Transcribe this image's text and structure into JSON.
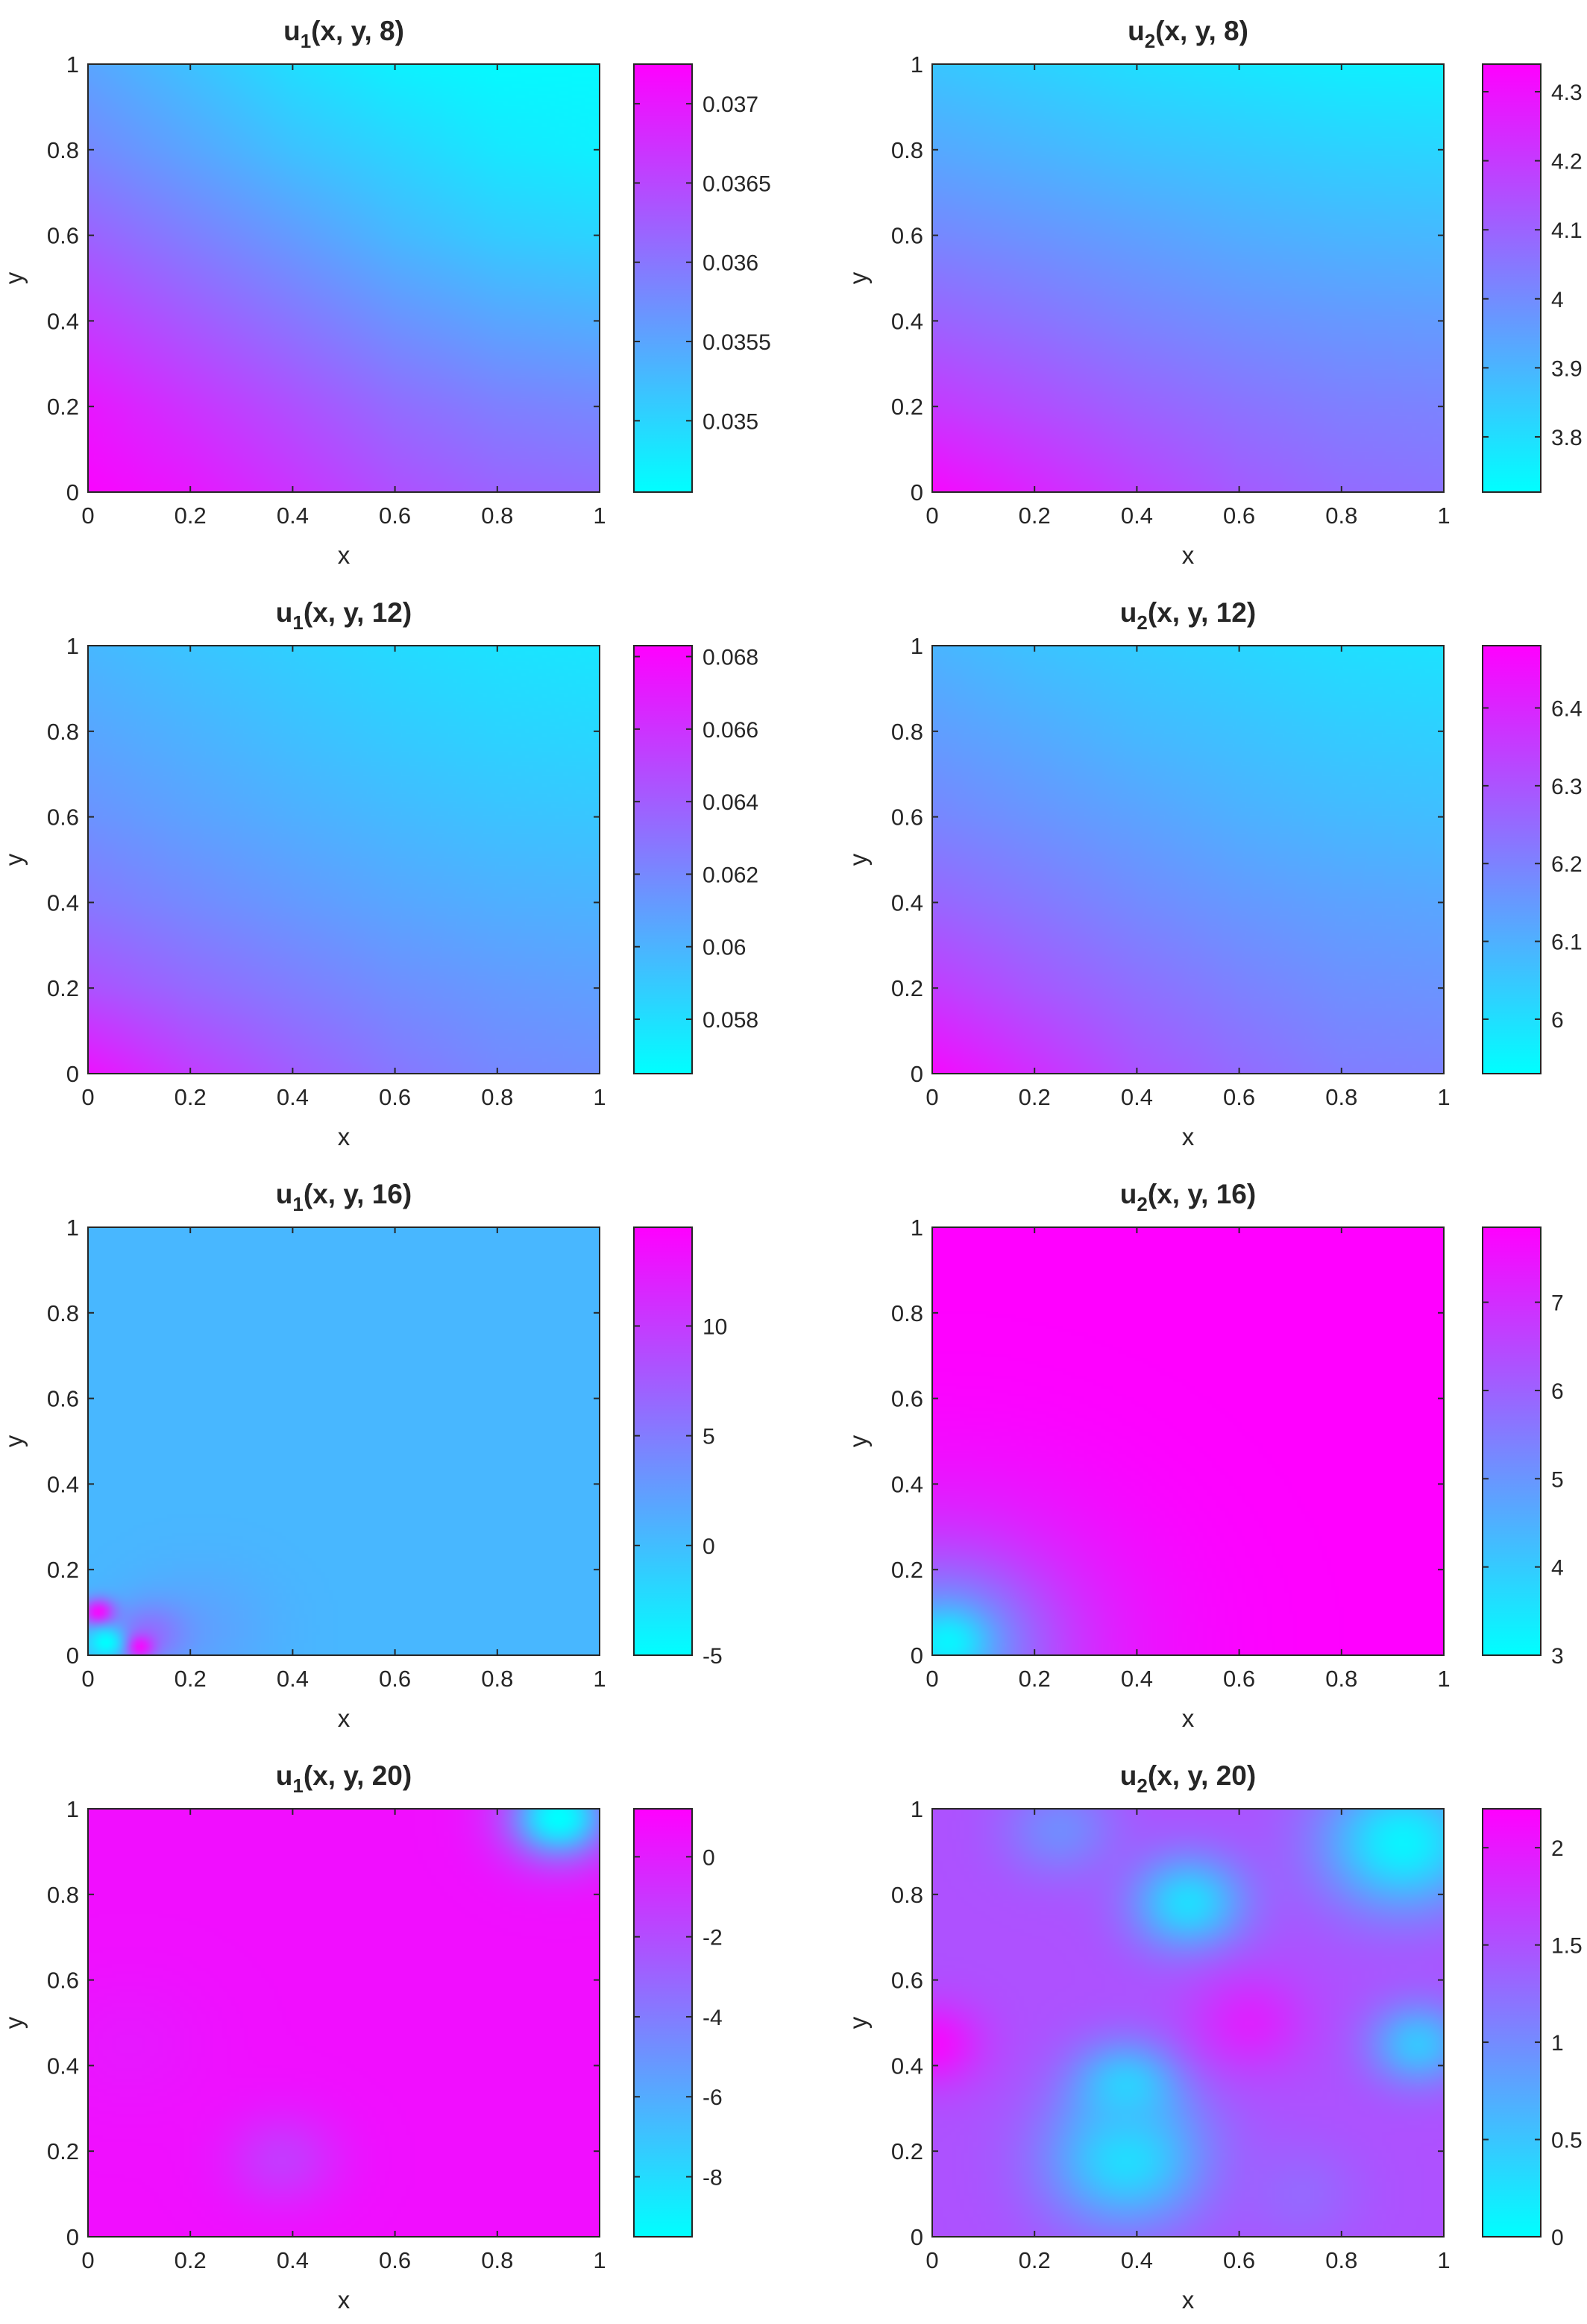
{
  "colors": {
    "low": "#00ffff",
    "high": "#ff00ff",
    "axis": "#262626"
  },
  "colormap": "cool",
  "chart_data": [
    {
      "type": "heatmap",
      "title": "u1(x, y, 8)",
      "title_main": "u",
      "title_sub": "1",
      "title_rest": "(x, y, 8)",
      "xlabel": "x",
      "ylabel": "y",
      "xlim": [
        0,
        1
      ],
      "ylim": [
        0,
        1
      ],
      "xticks": [
        "0",
        "0.2",
        "0.4",
        "0.6",
        "0.8",
        "1"
      ],
      "yticks": [
        "0",
        "0.2",
        "0.4",
        "0.6",
        "0.8",
        "1"
      ],
      "colorbar": {
        "range": [
          0.03455,
          0.03725
        ],
        "ticks": [
          0.035,
          0.0355,
          0.036,
          0.0365,
          0.037
        ],
        "tick_labels": [
          "0.035",
          "0.0355",
          "0.036",
          "0.0365",
          "0.037"
        ]
      },
      "z_rows_top_to_bottom": [
        [
          0.0355,
          0.0352,
          0.0349,
          0.0347,
          0.0346,
          0.0346
        ],
        [
          0.0358,
          0.0355,
          0.0352,
          0.035,
          0.0348,
          0.0347
        ],
        [
          0.0362,
          0.0359,
          0.0356,
          0.0353,
          0.0351,
          0.035
        ],
        [
          0.0366,
          0.0363,
          0.036,
          0.0357,
          0.0355,
          0.0354
        ],
        [
          0.037,
          0.0367,
          0.0364,
          0.0361,
          0.0359,
          0.0358
        ],
        [
          0.0372,
          0.037,
          0.0367,
          0.0364,
          0.0362,
          0.0361
        ]
      ]
    },
    {
      "type": "heatmap",
      "title": "u2(x, y, 8)",
      "title_main": "u",
      "title_sub": "2",
      "title_rest": "(x, y, 8)",
      "xlabel": "x",
      "ylabel": "y",
      "xlim": [
        0,
        1
      ],
      "ylim": [
        0,
        1
      ],
      "xticks": [
        "0",
        "0.2",
        "0.4",
        "0.6",
        "0.8",
        "1"
      ],
      "yticks": [
        "0",
        "0.2",
        "0.4",
        "0.6",
        "0.8",
        "1"
      ],
      "colorbar": {
        "range": [
          3.72,
          4.34
        ],
        "ticks": [
          3.8,
          3.9,
          4,
          4.1,
          4.2,
          4.3
        ],
        "tick_labels": [
          "3.8",
          "3.9",
          "4",
          "4.1",
          "4.2",
          "4.3"
        ]
      },
      "z_rows_top_to_bottom": [
        [
          3.86,
          3.83,
          3.8,
          3.78,
          3.76,
          3.75
        ],
        [
          3.93,
          3.9,
          3.87,
          3.85,
          3.83,
          3.82
        ],
        [
          4.01,
          3.98,
          3.95,
          3.92,
          3.9,
          3.89
        ],
        [
          4.1,
          4.06,
          4.02,
          3.99,
          3.97,
          3.96
        ],
        [
          4.2,
          4.15,
          4.1,
          4.06,
          4.03,
          4.02
        ],
        [
          4.32,
          4.25,
          4.18,
          4.12,
          4.08,
          4.06
        ]
      ]
    },
    {
      "type": "heatmap",
      "title": "u1(x, y, 12)",
      "title_main": "u",
      "title_sub": "1",
      "title_rest": "(x, y, 12)",
      "xlabel": "x",
      "ylabel": "y",
      "xlim": [
        0,
        1
      ],
      "ylim": [
        0,
        1
      ],
      "xticks": [
        "0",
        "0.2",
        "0.4",
        "0.6",
        "0.8",
        "1"
      ],
      "yticks": [
        "0",
        "0.2",
        "0.4",
        "0.6",
        "0.8",
        "1"
      ],
      "colorbar": {
        "range": [
          0.0565,
          0.0683
        ],
        "ticks": [
          0.058,
          0.06,
          0.062,
          0.064,
          0.066,
          0.068
        ],
        "tick_labels": [
          "0.058",
          "0.06",
          "0.062",
          "0.064",
          "0.066",
          "0.068"
        ]
      },
      "z_rows_top_to_bottom": [
        [
          0.0598,
          0.0592,
          0.0587,
          0.0582,
          0.0578,
          0.0576
        ],
        [
          0.0606,
          0.06,
          0.0594,
          0.0589,
          0.0585,
          0.0583
        ],
        [
          0.0615,
          0.0608,
          0.0602,
          0.0597,
          0.0593,
          0.0591
        ],
        [
          0.0627,
          0.0619,
          0.0612,
          0.0606,
          0.0602,
          0.06
        ],
        [
          0.0645,
          0.0634,
          0.0625,
          0.0617,
          0.0612,
          0.0609
        ],
        [
          0.0675,
          0.0655,
          0.064,
          0.0628,
          0.062,
          0.0617
        ]
      ]
    },
    {
      "type": "heatmap",
      "title": "u2(x, y, 12)",
      "title_main": "u",
      "title_sub": "2",
      "title_rest": "(x, y, 12)",
      "xlabel": "x",
      "ylabel": "y",
      "xlim": [
        0,
        1
      ],
      "ylim": [
        0,
        1
      ],
      "xticks": [
        "0",
        "0.2",
        "0.4",
        "0.6",
        "0.8",
        "1"
      ],
      "yticks": [
        "0",
        "0.2",
        "0.4",
        "0.6",
        "0.8",
        "1"
      ],
      "colorbar": {
        "range": [
          5.93,
          6.48
        ],
        "ticks": [
          6,
          6.1,
          6.2,
          6.3,
          6.4
        ],
        "tick_labels": [
          "6",
          "6.1",
          "6.2",
          "6.3",
          "6.4"
        ]
      },
      "z_rows_top_to_bottom": [
        [
          6.09,
          6.06,
          6.04,
          6.02,
          6.0,
          5.99
        ],
        [
          6.14,
          6.11,
          6.08,
          6.06,
          6.04,
          6.03
        ],
        [
          6.19,
          6.16,
          6.13,
          6.1,
          6.08,
          6.07
        ],
        [
          6.26,
          6.22,
          6.18,
          6.15,
          6.13,
          6.12
        ],
        [
          6.35,
          6.29,
          6.24,
          6.2,
          6.17,
          6.16
        ],
        [
          6.46,
          6.38,
          6.3,
          6.25,
          6.21,
          6.2
        ]
      ]
    },
    {
      "type": "heatmap",
      "title": "u1(x, y, 16)",
      "title_main": "u",
      "title_sub": "1",
      "title_rest": "(x, y, 16)",
      "xlabel": "x",
      "ylabel": "y",
      "xlim": [
        0,
        1
      ],
      "ylim": [
        0,
        1
      ],
      "xticks": [
        "0",
        "0.2",
        "0.4",
        "0.6",
        "0.8",
        "1"
      ],
      "yticks": [
        "0",
        "0.2",
        "0.4",
        "0.6",
        "0.8",
        "1"
      ],
      "colorbar": {
        "range": [
          -5,
          14.5
        ],
        "ticks": [
          -5,
          0,
          5,
          10
        ],
        "tick_labels": [
          "-5",
          "0",
          "5",
          "10"
        ]
      },
      "background_value": 0.5,
      "blobs": [
        {
          "x": 0.22,
          "y": 0.06,
          "r": 0.18,
          "value": 2.0
        },
        {
          "x": 0.12,
          "y": 0.05,
          "r": 0.09,
          "value": 6.0
        },
        {
          "x": 0.02,
          "y": 0.1,
          "r": 0.04,
          "value": 14.0
        },
        {
          "x": 0.1,
          "y": 0.02,
          "r": 0.035,
          "value": 14.0
        },
        {
          "x": 0.035,
          "y": 0.03,
          "r": 0.045,
          "value": -5.0
        }
      ]
    },
    {
      "type": "heatmap",
      "title": "u2(x,  y, 16)",
      "title_main": "u",
      "title_sub": "2",
      "title_rest": "(x,  y, 16)",
      "xlabel": "x",
      "ylabel": "y",
      "xlim": [
        0,
        1
      ],
      "ylim": [
        0,
        1
      ],
      "xticks": [
        "0",
        "0.2",
        "0.4",
        "0.6",
        "0.8",
        "1"
      ],
      "yticks": [
        "0",
        "0.2",
        "0.4",
        "0.6",
        "0.8",
        "1"
      ],
      "colorbar": {
        "range": [
          3,
          7.85
        ],
        "ticks": [
          3,
          4,
          5,
          6,
          7
        ],
        "tick_labels": [
          "3",
          "4",
          "5",
          "6",
          "7"
        ]
      },
      "background_value": 7.85,
      "blobs": [
        {
          "x": 0.0,
          "y": 0.0,
          "r": 0.45,
          "value": 6.3
        },
        {
          "x": 0.02,
          "y": 0.02,
          "r": 0.22,
          "value": 4.6
        },
        {
          "x": 0.03,
          "y": 0.03,
          "r": 0.09,
          "value": 3.2
        }
      ]
    },
    {
      "type": "heatmap",
      "title": "u1(x, y, 20)",
      "title_main": "u",
      "title_sub": "1",
      "title_rest": "(x, y, 20)",
      "xlabel": "x",
      "ylabel": "y",
      "xlim": [
        0,
        1
      ],
      "ylim": [
        0,
        1
      ],
      "xticks": [
        "0",
        "0.2",
        "0.4",
        "0.6",
        "0.8",
        "1"
      ],
      "yticks": [
        "0",
        "0.2",
        "0.4",
        "0.6",
        "0.8",
        "1"
      ],
      "colorbar": {
        "range": [
          -9.5,
          1.2
        ],
        "ticks": [
          -8,
          -6,
          -4,
          -2,
          0
        ],
        "tick_labels": [
          "-8",
          "-6",
          "-4",
          "-2",
          "0"
        ]
      },
      "background_value": 0.6,
      "blobs": [
        {
          "x": 0.92,
          "y": 0.98,
          "r": 0.14,
          "value": -6.0
        },
        {
          "x": 0.92,
          "y": 0.98,
          "r": 0.08,
          "value": -9.5
        },
        {
          "x": 0.38,
          "y": 0.18,
          "r": 0.14,
          "value": -1.2
        },
        {
          "x": 0.08,
          "y": 0.45,
          "r": 0.2,
          "value": 0.2
        }
      ]
    },
    {
      "type": "heatmap",
      "title": "u2(x, y, 20)",
      "title_main": "u",
      "title_sub": "2",
      "title_rest": "(x, y, 20)",
      "xlabel": "x",
      "ylabel": "y",
      "xlim": [
        0,
        1
      ],
      "ylim": [
        0,
        1
      ],
      "xticks": [
        "0",
        "0.2",
        "0.4",
        "0.6",
        "0.8",
        "1"
      ],
      "yticks": [
        "0",
        "0.2",
        "0.4",
        "0.6",
        "0.8",
        "1"
      ],
      "colorbar": {
        "range": [
          0,
          2.2
        ],
        "ticks": [
          0,
          0.5,
          1,
          1.5,
          2
        ],
        "tick_labels": [
          "0",
          "0.5",
          "1",
          "1.5",
          "2"
        ]
      },
      "background_value": 1.5,
      "blobs": [
        {
          "x": 0.38,
          "y": 0.18,
          "r": 0.2,
          "value": 0.3
        },
        {
          "x": 0.38,
          "y": 0.35,
          "r": 0.13,
          "value": 0.4
        },
        {
          "x": 0.5,
          "y": 0.78,
          "r": 0.14,
          "value": 0.3
        },
        {
          "x": 0.92,
          "y": 0.92,
          "r": 0.2,
          "value": 0.1
        },
        {
          "x": 0.95,
          "y": 0.45,
          "r": 0.12,
          "value": 0.5
        },
        {
          "x": 0.0,
          "y": 0.45,
          "r": 0.12,
          "value": 2.1
        },
        {
          "x": 0.62,
          "y": 0.5,
          "r": 0.14,
          "value": 1.9
        },
        {
          "x": 0.25,
          "y": 0.95,
          "r": 0.14,
          "value": 1.0
        },
        {
          "x": 0.72,
          "y": 0.1,
          "r": 0.15,
          "value": 1.3
        }
      ]
    }
  ]
}
